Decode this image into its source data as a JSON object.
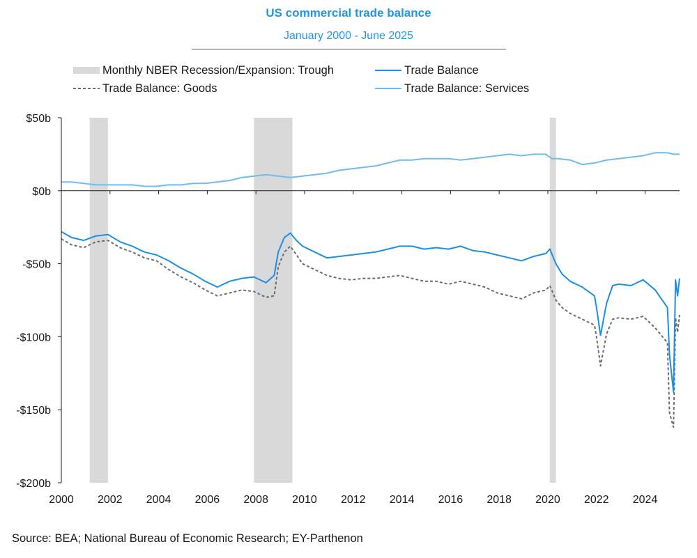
{
  "chart_data": {
    "type": "line",
    "title": "US commercial trade balance",
    "subtitle": "January 2000 - June 2025",
    "source": "Source: BEA; National Bureau of Economic Research; EY-Parthenon",
    "legend_placement": "top",
    "ylim": [
      -200,
      50
    ],
    "xlim": [
      "2000-01",
      "2025-06"
    ],
    "y_ticks": [
      {
        "value": 50,
        "label": "$50b"
      },
      {
        "value": 0,
        "label": "$0b"
      },
      {
        "value": -50,
        "label": "-$50b"
      },
      {
        "value": -100,
        "label": "-$100b"
      },
      {
        "value": -150,
        "label": "-$150b"
      },
      {
        "value": -200,
        "label": "-$200b"
      }
    ],
    "x_ticks": [
      {
        "value": 2000,
        "label": "2000"
      },
      {
        "value": 2002,
        "label": "2002"
      },
      {
        "value": 2004,
        "label": "2004"
      },
      {
        "value": 2006,
        "label": "2006"
      },
      {
        "value": 2008,
        "label": "2008"
      },
      {
        "value": 2010,
        "label": "2010"
      },
      {
        "value": 2012,
        "label": "2012"
      },
      {
        "value": 2014,
        "label": "2014"
      },
      {
        "value": 2016,
        "label": "2016"
      },
      {
        "value": 2018,
        "label": "2018"
      },
      {
        "value": 2020,
        "label": "2020"
      },
      {
        "value": 2022,
        "label": "2022"
      },
      {
        "value": 2024,
        "label": "2024"
      }
    ],
    "recessions": [
      {
        "start": "2001-03",
        "end": "2001-11"
      },
      {
        "start": "2007-12",
        "end": "2009-06"
      },
      {
        "start": "2020-02",
        "end": "2020-04"
      }
    ],
    "series": [
      {
        "name": "Monthly NBER Recession/Expansion: Trough",
        "role": "recession-band",
        "color": "#d9d9d9"
      },
      {
        "name": "Trade Balance",
        "color": "#1a8fe3",
        "style": "solid",
        "points": [
          [
            "2000-01",
            -28
          ],
          [
            "2000-06",
            -32
          ],
          [
            "2000-12",
            -34
          ],
          [
            "2001-06",
            -31
          ],
          [
            "2001-12",
            -30
          ],
          [
            "2002-06",
            -35
          ],
          [
            "2002-12",
            -38
          ],
          [
            "2003-06",
            -42
          ],
          [
            "2003-12",
            -44
          ],
          [
            "2004-06",
            -48
          ],
          [
            "2004-12",
            -53
          ],
          [
            "2005-06",
            -57
          ],
          [
            "2005-12",
            -62
          ],
          [
            "2006-06",
            -66
          ],
          [
            "2006-12",
            -62
          ],
          [
            "2007-06",
            -60
          ],
          [
            "2007-12",
            -59
          ],
          [
            "2008-06",
            -63
          ],
          [
            "2008-10",
            -58
          ],
          [
            "2008-12",
            -42
          ],
          [
            "2009-03",
            -32
          ],
          [
            "2009-06",
            -29
          ],
          [
            "2009-09",
            -34
          ],
          [
            "2009-12",
            -38
          ],
          [
            "2010-06",
            -42
          ],
          [
            "2010-12",
            -46
          ],
          [
            "2011-06",
            -45
          ],
          [
            "2011-12",
            -44
          ],
          [
            "2012-06",
            -43
          ],
          [
            "2012-12",
            -42
          ],
          [
            "2013-06",
            -40
          ],
          [
            "2013-12",
            -38
          ],
          [
            "2014-06",
            -38
          ],
          [
            "2014-12",
            -40
          ],
          [
            "2015-06",
            -39
          ],
          [
            "2015-12",
            -40
          ],
          [
            "2016-06",
            -38
          ],
          [
            "2016-12",
            -41
          ],
          [
            "2017-06",
            -42
          ],
          [
            "2017-12",
            -44
          ],
          [
            "2018-06",
            -46
          ],
          [
            "2018-12",
            -48
          ],
          [
            "2019-06",
            -45
          ],
          [
            "2019-12",
            -43
          ],
          [
            "2020-02",
            -40
          ],
          [
            "2020-05",
            -50
          ],
          [
            "2020-08",
            -57
          ],
          [
            "2020-12",
            -62
          ],
          [
            "2021-06",
            -66
          ],
          [
            "2021-12",
            -72
          ],
          [
            "2022-01",
            -80
          ],
          [
            "2022-03",
            -99
          ],
          [
            "2022-06",
            -77
          ],
          [
            "2022-09",
            -65
          ],
          [
            "2022-12",
            -64
          ],
          [
            "2023-06",
            -65
          ],
          [
            "2023-12",
            -61
          ],
          [
            "2024-06",
            -68
          ],
          [
            "2024-09",
            -74
          ],
          [
            "2024-12",
            -80
          ],
          [
            "2025-01",
            -112
          ],
          [
            "2025-03",
            -138
          ],
          [
            "2025-04",
            -61
          ],
          [
            "2025-05",
            -72
          ],
          [
            "2025-06",
            -60
          ]
        ]
      },
      {
        "name": "Trade Balance: Goods",
        "color": "#6b6b72",
        "style": "dashed",
        "points": [
          [
            "2000-01",
            -33
          ],
          [
            "2000-06",
            -37
          ],
          [
            "2000-12",
            -39
          ],
          [
            "2001-06",
            -35
          ],
          [
            "2001-12",
            -34
          ],
          [
            "2002-06",
            -39
          ],
          [
            "2002-12",
            -42
          ],
          [
            "2003-06",
            -46
          ],
          [
            "2003-12",
            -48
          ],
          [
            "2004-06",
            -54
          ],
          [
            "2004-12",
            -59
          ],
          [
            "2005-06",
            -63
          ],
          [
            "2005-12",
            -68
          ],
          [
            "2006-06",
            -72
          ],
          [
            "2006-12",
            -70
          ],
          [
            "2007-06",
            -68
          ],
          [
            "2007-12",
            -69
          ],
          [
            "2008-06",
            -73
          ],
          [
            "2008-10",
            -72
          ],
          [
            "2008-12",
            -52
          ],
          [
            "2009-03",
            -42
          ],
          [
            "2009-06",
            -38
          ],
          [
            "2009-09",
            -44
          ],
          [
            "2009-12",
            -50
          ],
          [
            "2010-06",
            -54
          ],
          [
            "2010-12",
            -58
          ],
          [
            "2011-06",
            -60
          ],
          [
            "2011-12",
            -61
          ],
          [
            "2012-06",
            -60
          ],
          [
            "2012-12",
            -60
          ],
          [
            "2013-06",
            -59
          ],
          [
            "2013-12",
            -58
          ],
          [
            "2014-06",
            -60
          ],
          [
            "2014-12",
            -62
          ],
          [
            "2015-06",
            -62
          ],
          [
            "2015-12",
            -64
          ],
          [
            "2016-06",
            -62
          ],
          [
            "2016-12",
            -64
          ],
          [
            "2017-06",
            -66
          ],
          [
            "2017-12",
            -70
          ],
          [
            "2018-06",
            -72
          ],
          [
            "2018-12",
            -74
          ],
          [
            "2019-06",
            -70
          ],
          [
            "2019-12",
            -68
          ],
          [
            "2020-02",
            -65
          ],
          [
            "2020-05",
            -75
          ],
          [
            "2020-08",
            -80
          ],
          [
            "2020-12",
            -84
          ],
          [
            "2021-06",
            -88
          ],
          [
            "2021-12",
            -92
          ],
          [
            "2022-01",
            -100
          ],
          [
            "2022-03",
            -120
          ],
          [
            "2022-06",
            -98
          ],
          [
            "2022-09",
            -88
          ],
          [
            "2022-12",
            -87
          ],
          [
            "2023-06",
            -88
          ],
          [
            "2023-12",
            -86
          ],
          [
            "2024-06",
            -94
          ],
          [
            "2024-09",
            -99
          ],
          [
            "2024-12",
            -104
          ],
          [
            "2025-01",
            -152
          ],
          [
            "2025-03",
            -162
          ],
          [
            "2025-04",
            -87
          ],
          [
            "2025-05",
            -97
          ],
          [
            "2025-06",
            -85
          ]
        ]
      },
      {
        "name": "Trade Balance: Services",
        "color": "#6fbcf0",
        "style": "solid",
        "points": [
          [
            "2000-01",
            6
          ],
          [
            "2000-06",
            6
          ],
          [
            "2000-12",
            5
          ],
          [
            "2001-06",
            4
          ],
          [
            "2001-12",
            4
          ],
          [
            "2002-06",
            4
          ],
          [
            "2002-12",
            4
          ],
          [
            "2003-06",
            3
          ],
          [
            "2003-12",
            3
          ],
          [
            "2004-06",
            4
          ],
          [
            "2004-12",
            4
          ],
          [
            "2005-06",
            5
          ],
          [
            "2005-12",
            5
          ],
          [
            "2006-06",
            6
          ],
          [
            "2006-12",
            7
          ],
          [
            "2007-06",
            9
          ],
          [
            "2007-12",
            10
          ],
          [
            "2008-06",
            11
          ],
          [
            "2008-12",
            10
          ],
          [
            "2009-06",
            9
          ],
          [
            "2009-12",
            10
          ],
          [
            "2010-06",
            11
          ],
          [
            "2010-12",
            12
          ],
          [
            "2011-06",
            14
          ],
          [
            "2011-12",
            15
          ],
          [
            "2012-06",
            16
          ],
          [
            "2012-12",
            17
          ],
          [
            "2013-06",
            19
          ],
          [
            "2013-12",
            21
          ],
          [
            "2014-06",
            21
          ],
          [
            "2014-12",
            22
          ],
          [
            "2015-06",
            22
          ],
          [
            "2015-12",
            22
          ],
          [
            "2016-06",
            21
          ],
          [
            "2016-12",
            22
          ],
          [
            "2017-06",
            23
          ],
          [
            "2017-12",
            24
          ],
          [
            "2018-06",
            25
          ],
          [
            "2018-12",
            24
          ],
          [
            "2019-06",
            25
          ],
          [
            "2019-12",
            25
          ],
          [
            "2020-03",
            22
          ],
          [
            "2020-06",
            22
          ],
          [
            "2020-12",
            21
          ],
          [
            "2021-06",
            18
          ],
          [
            "2021-12",
            19
          ],
          [
            "2022-06",
            21
          ],
          [
            "2022-12",
            22
          ],
          [
            "2023-06",
            23
          ],
          [
            "2023-12",
            24
          ],
          [
            "2024-06",
            26
          ],
          [
            "2024-12",
            26
          ],
          [
            "2025-03",
            25
          ],
          [
            "2025-06",
            25
          ]
        ]
      }
    ]
  }
}
